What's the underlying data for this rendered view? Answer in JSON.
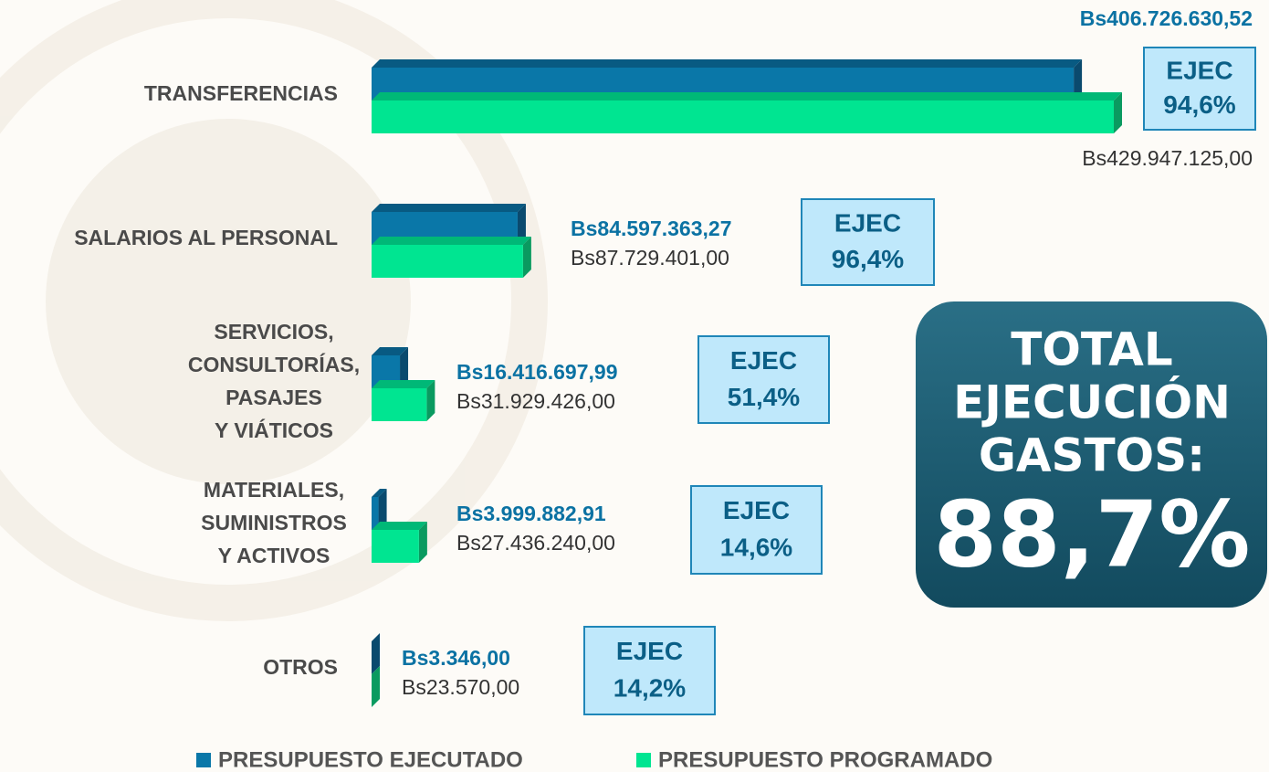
{
  "chart_data": {
    "type": "bar",
    "orientation": "horizontal",
    "categories": [
      [
        "TRANSFERENCIAS"
      ],
      [
        "SALARIOS AL PERSONAL"
      ],
      [
        "SERVICIOS,",
        "CONSULTORÍAS,",
        "PASAJES",
        "Y VIÁTICOS"
      ],
      [
        "MATERIALES,",
        "SUMINISTROS",
        "Y ACTIVOS"
      ],
      [
        "OTROS"
      ]
    ],
    "series": [
      {
        "name": "PRESUPUESTO EJECUTADO",
        "color": "#0a77a8",
        "values": [
          406726630.52,
          84597363.27,
          16416697.99,
          3999882.91,
          3346
        ],
        "value_labels": [
          "Bs406.726.630,52",
          "Bs84.597.363,27",
          "Bs16.416.697,99",
          "Bs3.999.882,91",
          "Bs3.346,00"
        ]
      },
      {
        "name": "PRESUPUESTO PROGRAMADO",
        "color": "#00e591",
        "values": [
          429947125,
          87729401,
          31929426,
          27436240,
          23570
        ],
        "value_labels": [
          "Bs429.947.125,00",
          "Bs87.729.401,00",
          "Bs31.929.426,00",
          "Bs27.436.240,00",
          "Bs23.570,00"
        ]
      }
    ],
    "execution_label": "EJEC",
    "execution": [
      94.6,
      96.4,
      51.4,
      14.6,
      14.2
    ],
    "execution_labels": [
      "94,6%",
      "96,4%",
      "51,4%",
      "14,6%",
      "14,2%"
    ],
    "total": {
      "label": [
        "TOTAL",
        "EJECUCIÓN",
        "GASTOS:"
      ],
      "value": 88.7,
      "value_label": "88,7%"
    },
    "legend": "bottom"
  }
}
